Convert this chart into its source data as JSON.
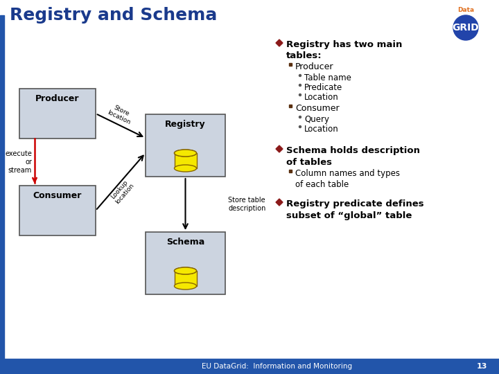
{
  "title": "Registry and Schema",
  "title_color": "#1a3a8c",
  "title_fontsize": 18,
  "bg_color": "#ffffff",
  "left_bar_color": "#2255aa",
  "bottom_bar_color": "#2255aa",
  "box_fill": "#ccd4e0",
  "box_edge": "#555555",
  "bullet_color": "#8b1a1a",
  "bullet1": "Registry has two main\ntables:",
  "sub1": "Producer",
  "sub1a": "Table name",
  "sub1b": "Predicate",
  "sub1c": "Location",
  "sub2": "Consumer",
  "sub2a": "Query",
  "sub2b": "Location",
  "bullet2": "Schema holds description\nof tables",
  "sub3": "Column names and types\nof each table",
  "bullet3": "Registry predicate defines\nsubset of “global” table",
  "footer": "EU DataGrid:  Information and Monitoring",
  "page_num": "13",
  "box_producer_label": "Producer",
  "box_consumer_label": "Consumer",
  "box_registry_label": "Registry",
  "box_schema_label": "Schema",
  "arrow_store": "Store\nlocation",
  "arrow_lookup": "Lookup\nlocation",
  "arrow_store_table": "Store table\ndescription",
  "execute_label": "execute\nor\nstream",
  "logo_data_color": "#e07020",
  "logo_grid_bg": "#2244aa",
  "logo_grid_color": "#ffffff",
  "cyl_fill": "#f5e800",
  "cyl_edge": "#886600"
}
